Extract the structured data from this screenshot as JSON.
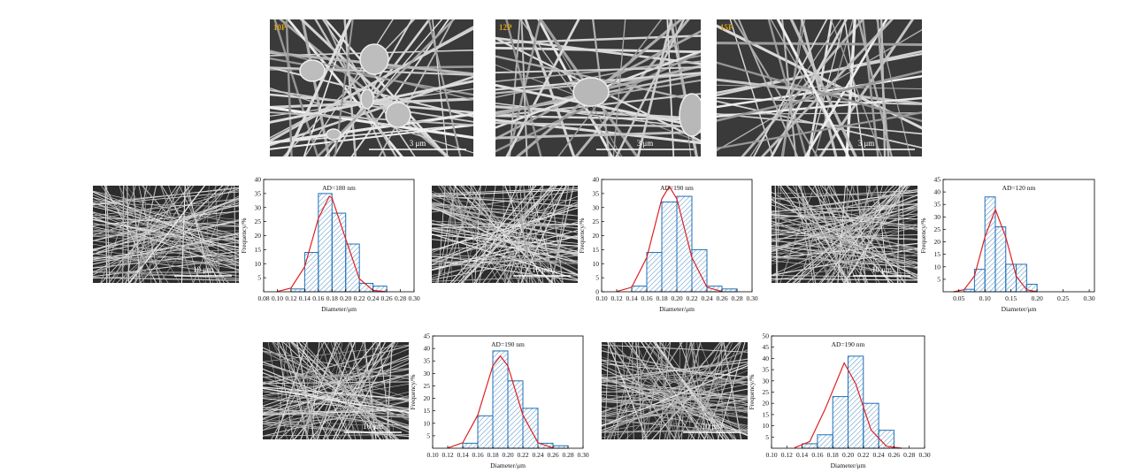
{
  "images": [
    {
      "label": "10P",
      "scale": "3 μm"
    },
    {
      "label": "12P",
      "scale": "3 μm"
    },
    {
      "label": "15P",
      "scale": "3 μm"
    },
    {
      "scale": "10 μm"
    },
    {
      "scale": "10 μm"
    },
    {
      "scale": "10 μm"
    },
    {
      "scale": "10 μm"
    },
    {
      "scale": "10 μm"
    }
  ],
  "chart_data": [
    {
      "type": "histogram",
      "annotation": "AD=180 nm",
      "x_label": "Diameter/μm",
      "y_label": "Frequency/%",
      "bins": [
        0.12,
        0.14,
        0.16,
        0.18,
        0.2,
        0.22,
        0.24,
        0.26
      ],
      "values": [
        1,
        14,
        35,
        28,
        17,
        3,
        2
      ],
      "color": "#1f6fb5",
      "curve": {
        "color": "#e02020",
        "x": [
          0.1,
          0.12,
          0.14,
          0.16,
          0.176,
          0.18,
          0.2,
          0.22,
          0.24,
          0.26
        ],
        "y": [
          0.1,
          1.3,
          8.9,
          26.1,
          34,
          33.4,
          18.8,
          4.6,
          0.5,
          0
        ]
      },
      "xlim": [
        0.08,
        0.3
      ],
      "ylim": [
        0,
        40
      ],
      "xticks": [
        0.08,
        {
          "value": 0.1,
          "label": "0.10"
        },
        0.12,
        0.14,
        0.16,
        0.18,
        {
          "value": 0.2,
          "label": "0.20"
        },
        0.22,
        0.24,
        0.26,
        0.28,
        {
          "value": 0.3,
          "label": "0.30"
        }
      ],
      "yticks": [
        5,
        10,
        15,
        20,
        25,
        30,
        35,
        40
      ]
    },
    {
      "type": "histogram",
      "annotation": "AD=190 nm",
      "x_label": "Diameter/μm",
      "y_label": "Frequency/%",
      "bins": [
        0.14,
        0.16,
        0.18,
        0.2,
        0.22,
        0.24,
        0.26,
        0.28
      ],
      "values": [
        2,
        14,
        32,
        34,
        15,
        2,
        1
      ],
      "color": "#1f6fb5",
      "curve": {
        "color": "#e02020",
        "x": [
          0.12,
          0.14,
          0.16,
          0.18,
          0.19,
          0.2,
          0.22,
          0.24,
          0.26
        ],
        "y": [
          0.1,
          1.6,
          12.2,
          33.1,
          37.5,
          33.1,
          12.2,
          1.6,
          0.1
        ]
      },
      "xlim": [
        0.1,
        0.3
      ],
      "ylim": [
        0,
        40
      ],
      "xticks": [
        {
          "value": 0.1,
          "label": "0.10"
        },
        0.12,
        0.14,
        0.16,
        0.18,
        {
          "value": 0.2,
          "label": "0.20"
        },
        0.22,
        0.24,
        0.26,
        0.28,
        {
          "value": 0.3,
          "label": "0.30"
        }
      ],
      "yticks": [
        0,
        5,
        10,
        15,
        20,
        25,
        30,
        35,
        40
      ]
    },
    {
      "type": "histogram",
      "annotation": "AD=120 nm",
      "x_label": "Diameter/μm",
      "y_label": "Frequency/%",
      "bins": [
        0.06,
        0.08,
        0.1,
        0.12,
        0.14,
        0.16,
        0.18,
        0.2
      ],
      "values": [
        1,
        9,
        38,
        26,
        11,
        11,
        3
      ],
      "color": "#1f6fb5",
      "curve": {
        "color": "#e02020",
        "x": [
          0.04,
          0.06,
          0.08,
          0.1,
          0.12,
          0.14,
          0.16,
          0.18,
          0.2
        ],
        "y": [
          0,
          0.8,
          6.3,
          21.9,
          33,
          21.9,
          6.3,
          0.8,
          0
        ]
      },
      "xlim": [
        0.02,
        0.31
      ],
      "ylim": [
        0,
        45
      ],
      "xticks": [
        0.05,
        {
          "value": 0.1,
          "label": "0.10"
        },
        0.15,
        {
          "value": 0.2,
          "label": "0.20"
        },
        0.25,
        {
          "value": 0.3,
          "label": "0.30"
        }
      ],
      "yticks": [
        5,
        10,
        15,
        20,
        25,
        30,
        35,
        40,
        45
      ]
    },
    {
      "type": "histogram",
      "annotation": "AD=190 nm",
      "x_label": "Diameter/μm",
      "y_label": "Frequency/%",
      "bins": [
        0.14,
        0.16,
        0.18,
        0.2,
        0.22,
        0.24,
        0.26,
        0.28
      ],
      "values": [
        2,
        13,
        39,
        27,
        16,
        2,
        1
      ],
      "color": "#1f6fb5",
      "curve": {
        "color": "#e02020",
        "x": [
          0.12,
          0.14,
          0.16,
          0.18,
          0.19,
          0.2,
          0.22,
          0.24,
          0.26
        ],
        "y": [
          0.1,
          2.2,
          13.3,
          33,
          37,
          33,
          13.3,
          2.2,
          0.1
        ]
      },
      "xlim": [
        0.1,
        0.3
      ],
      "ylim": [
        0,
        45
      ],
      "xticks": [
        {
          "value": 0.1,
          "label": "0.10"
        },
        0.12,
        0.14,
        0.16,
        0.18,
        {
          "value": 0.2,
          "label": "0.20"
        },
        0.22,
        0.24,
        0.26,
        0.28,
        {
          "value": 0.3,
          "label": "0.30"
        }
      ],
      "yticks": [
        5,
        10,
        15,
        20,
        25,
        30,
        35,
        40,
        45
      ]
    },
    {
      "type": "histogram",
      "annotation": "AD=190 nm",
      "x_label": "Diameter/μm",
      "y_label": "Frequency/%",
      "bins": [
        0.14,
        0.16,
        0.18,
        0.2,
        0.22,
        0.24,
        0.26
      ],
      "values": [
        2,
        6,
        23,
        41,
        20,
        8
      ],
      "color": "#1f6fb5",
      "curve": {
        "color": "#e02020",
        "x": [
          0.13,
          0.15,
          0.17,
          0.195,
          0.21,
          0.23,
          0.25,
          0.27
        ],
        "y": [
          0.2,
          3,
          17.4,
          38,
          28.7,
          8.2,
          0.9,
          0
        ]
      },
      "xlim": [
        0.1,
        0.3
      ],
      "ylim": [
        0,
        50
      ],
      "xticks": [
        {
          "value": 0.1,
          "label": "0.10"
        },
        0.12,
        0.14,
        0.16,
        0.18,
        {
          "value": 0.2,
          "label": "0.20"
        },
        0.22,
        0.24,
        0.26,
        0.28,
        {
          "value": 0.3,
          "label": "0.30"
        }
      ],
      "yticks": [
        5,
        10,
        15,
        20,
        25,
        30,
        35,
        40,
        45,
        50
      ]
    }
  ]
}
